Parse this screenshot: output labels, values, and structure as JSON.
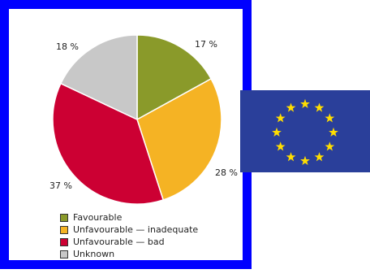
{
  "chart_data": {
    "type": "pie",
    "title": "",
    "slices": [
      {
        "label": "Favourable",
        "value": 17,
        "display": "17 %",
        "color": "#8a9a2a"
      },
      {
        "label": "Unfavourable — inadequate",
        "value": 28,
        "display": "28 %",
        "color": "#f5b324"
      },
      {
        "label": "Unfavourable — bad",
        "value": 37,
        "display": "37 %",
        "color": "#cc0033"
      },
      {
        "label": "Unknown",
        "value": 18,
        "display": "18 %",
        "color": "#c8c8c8"
      }
    ],
    "start_angle_deg": 0,
    "direction": "clockwise",
    "legend_position": "bottom-left"
  },
  "colors": {
    "frame": "#0000ff",
    "eu_flag_blue": "#2a3f9a",
    "eu_star": "#ffdd00"
  },
  "icons": {
    "flag": "eu-flag-icon"
  }
}
